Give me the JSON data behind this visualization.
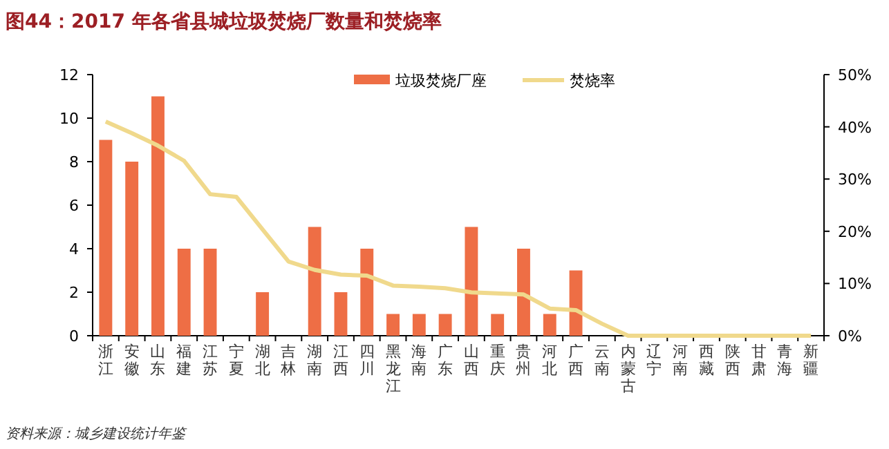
{
  "chart_data": {
    "type": "bar",
    "title": "图44：2017 年各省县城垃圾焚烧厂数量和焚烧率",
    "categories": [
      "浙江",
      "安徽",
      "山东",
      "福建",
      "江苏",
      "宁夏",
      "湖北",
      "吉林",
      "湖南",
      "江西",
      "四川",
      "黑龙江",
      "海南",
      "广东",
      "山西",
      "重庆",
      "贵州",
      "河北",
      "广西",
      "云南",
      "内蒙古",
      "辽宁",
      "河南",
      "西藏",
      "陕西",
      "甘肃",
      "青海",
      "新疆"
    ],
    "series": [
      {
        "name": "垃圾焚烧厂座",
        "color": "#ee6e45",
        "values": [
          9,
          8,
          11,
          4,
          4,
          0,
          2,
          0,
          5,
          2,
          4,
          1,
          1,
          1,
          5,
          1,
          4,
          1,
          3,
          0,
          0,
          0,
          0,
          0,
          0,
          0,
          0,
          0
        ]
      },
      {
        "name": "焚烧率",
        "type": "line",
        "axis": "y2",
        "color": "#f0d98c",
        "values": [
          41.0,
          38.8,
          36.4,
          33.5,
          27.1,
          26.6,
          20.4,
          14.2,
          12.6,
          11.7,
          11.5,
          9.6,
          9.4,
          9.1,
          8.3,
          8.1,
          7.9,
          5.2,
          4.9,
          2.3,
          0,
          0,
          0,
          0,
          0,
          0,
          0,
          0
        ]
      }
    ],
    "ylim": [
      0,
      12
    ],
    "yticks": [
      0,
      2,
      4,
      6,
      8,
      10,
      12
    ],
    "y2lim": [
      0,
      50
    ],
    "y2ticks": [
      {
        "value": 0,
        "label": "0%"
      },
      {
        "value": 10,
        "label": "10%"
      },
      {
        "value": 20,
        "label": "20%"
      },
      {
        "value": 30,
        "label": "30%"
      },
      {
        "value": 40,
        "label": "40%"
      },
      {
        "value": 50,
        "label": "50%"
      }
    ],
    "legend": "top right",
    "marker": "none",
    "line_style": "solid",
    "annotations": [
      "资料来源：城乡建设统计年鉴"
    ]
  }
}
